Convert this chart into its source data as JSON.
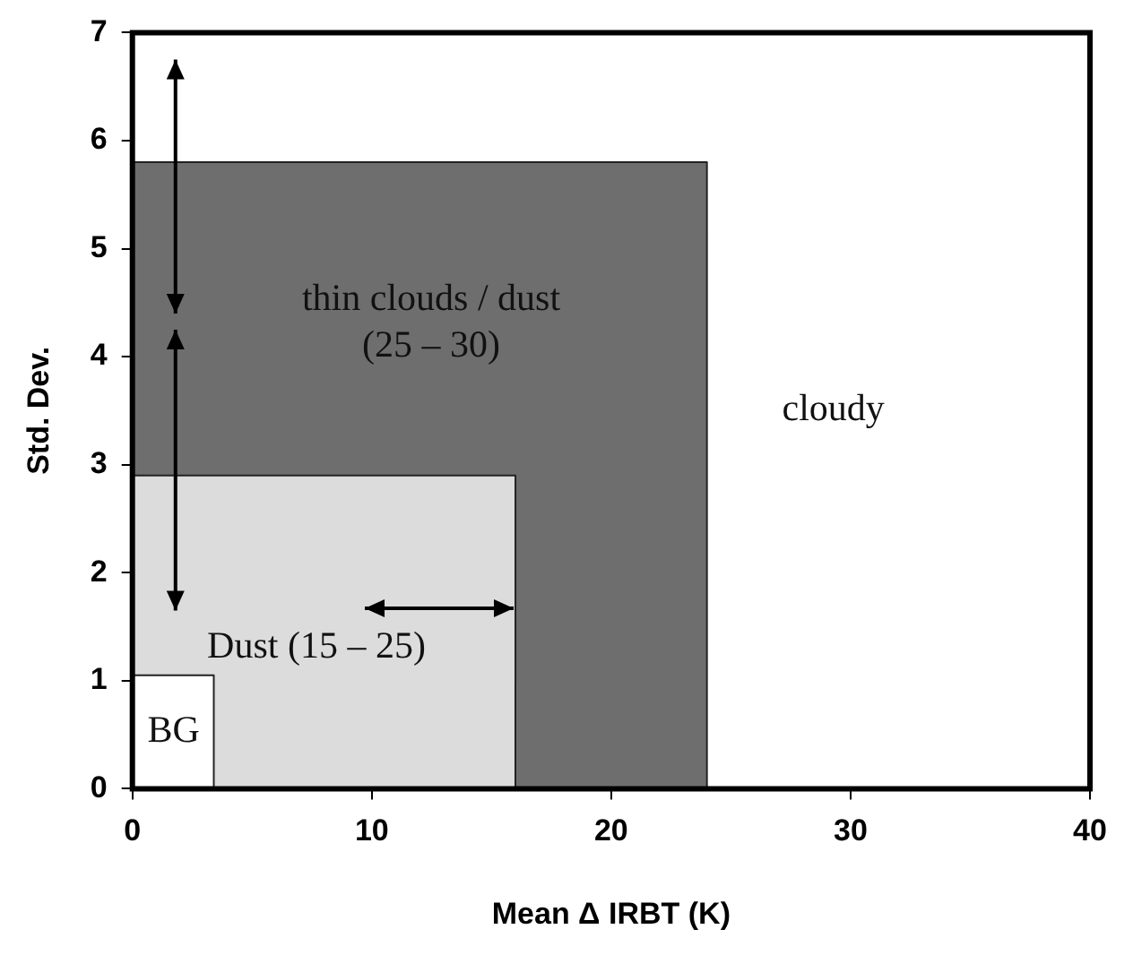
{
  "chart_data": {
    "type": "area",
    "xlabel": "Mean Δ IRBT (K)",
    "ylabel": "Std. Dev.",
    "xlim": [
      0,
      40
    ],
    "xticks": [
      0,
      10,
      20,
      30,
      40
    ],
    "ylim": [
      0,
      7
    ],
    "yticks": [
      0,
      1,
      2,
      3,
      4,
      5,
      6,
      7
    ],
    "grid": false,
    "legend": false,
    "marker": "none",
    "series": [
      {
        "color": "#6e6e6e",
        "x": [
          0,
          0,
          24,
          24
        ],
        "values": [
          0,
          5.8,
          5.8,
          0
        ]
      },
      {
        "color": "#dcdcdc",
        "x": [
          0,
          0,
          16,
          16
        ],
        "values": [
          0,
          2.9,
          2.9,
          0
        ]
      },
      {
        "color": "#ffffff",
        "x": [
          0,
          0,
          3.4,
          3.4
        ],
        "values": [
          0,
          1.05,
          1.05,
          0
        ]
      }
    ],
    "annotations": [
      "thin clouds / dust\n(25 – 30)",
      {
        "text": "Dust (15 – 25)",
        "x": 16,
        "y": 1.67
      },
      "BG",
      "cloudy"
    ]
  }
}
